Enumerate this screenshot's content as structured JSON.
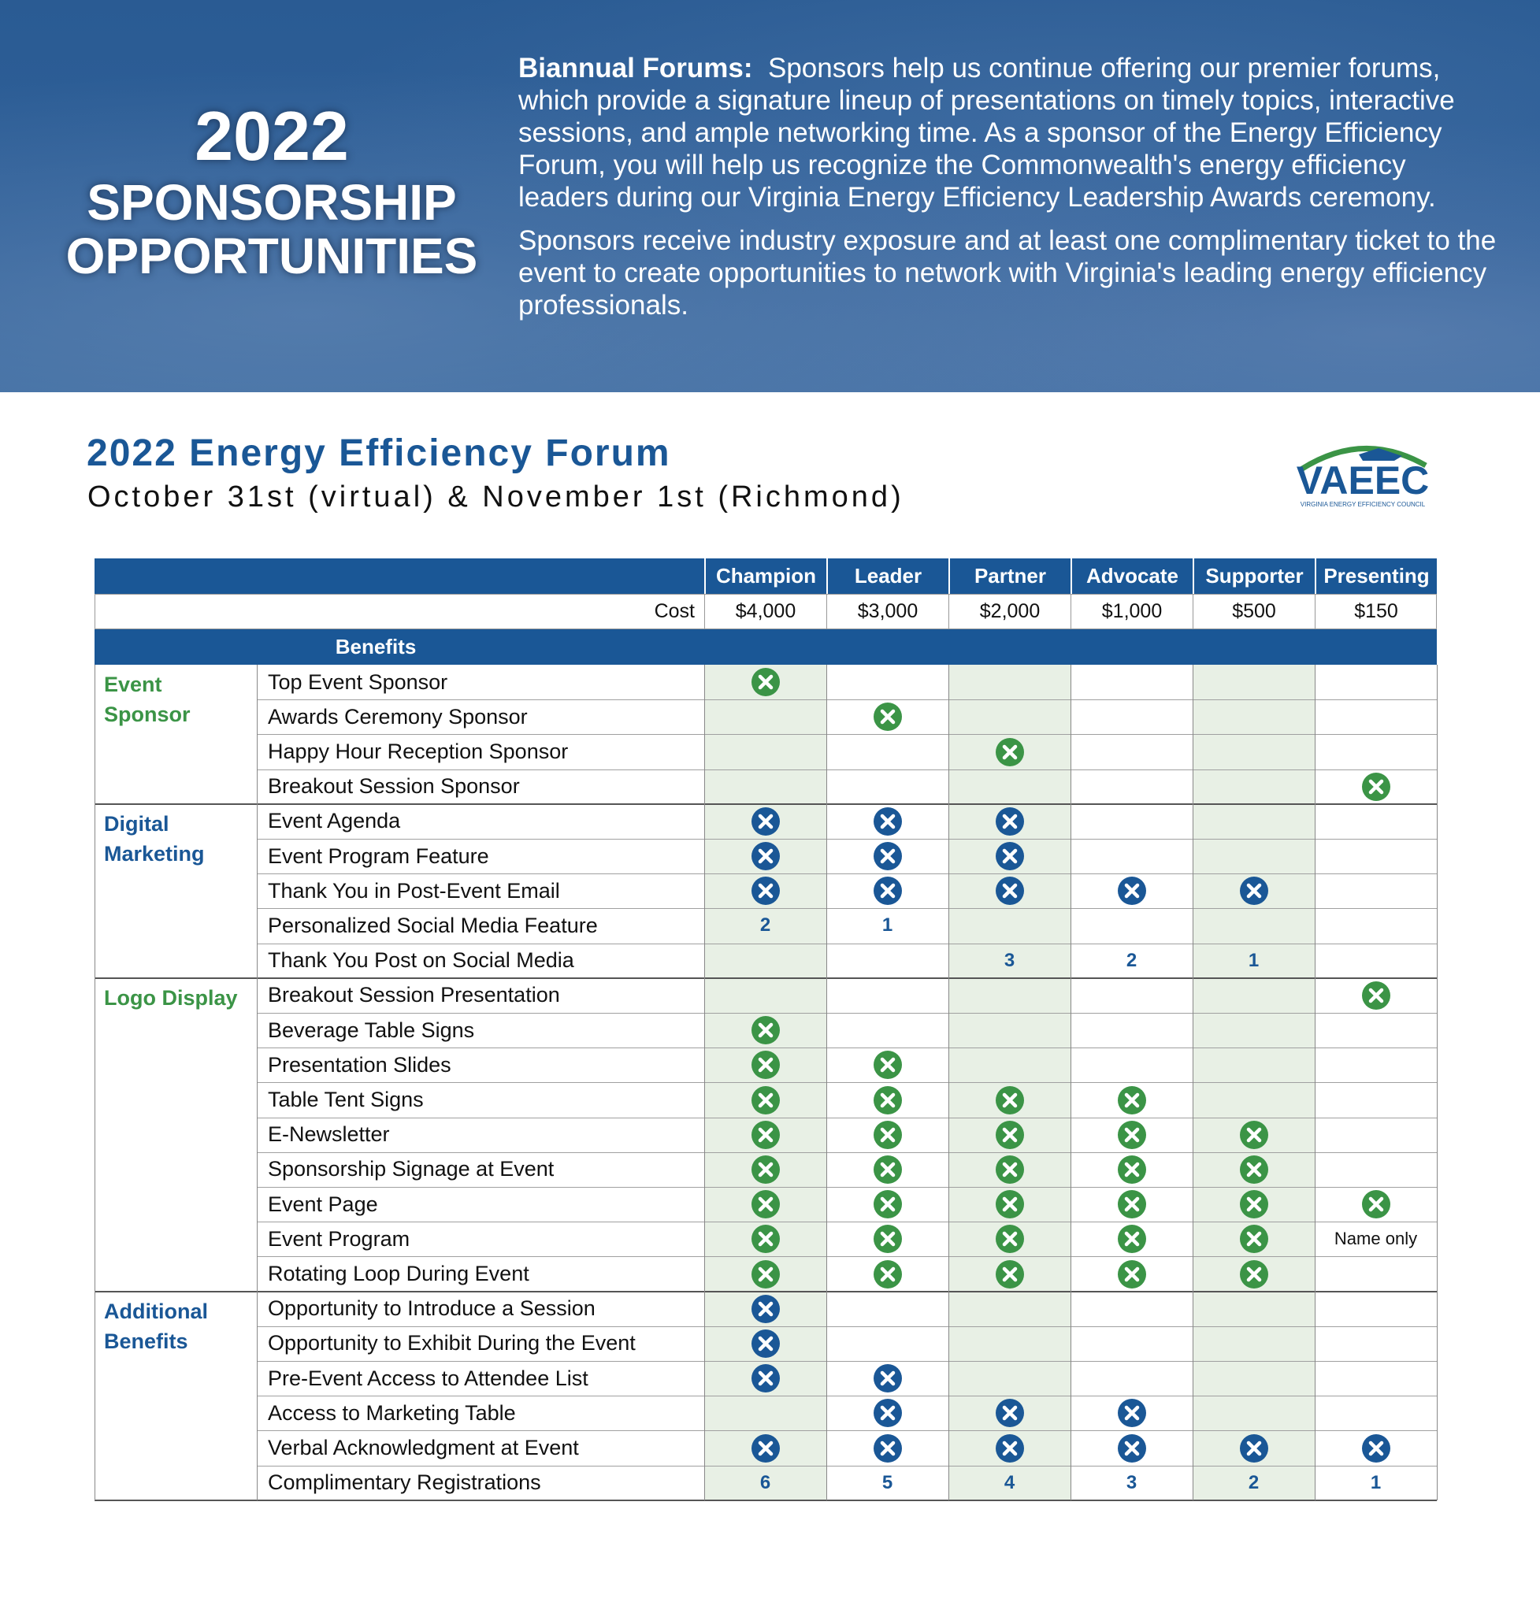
{
  "header": {
    "title_year": "2022",
    "title_line1": "SPONSORSHIP",
    "title_line2": "OPPORTUNITIES",
    "paragraphs": [
      {
        "label": "Biannual Forums:",
        "text": "Sponsors help us continue offering our premier forums, which provide a signature lineup of presentations on timely topics, interactive sessions, and ample networking time. As a sponsor of the Energy Efficiency Forum, you will help us recognize the Commonwealth's energy efficiency leaders during our Virginia Energy Efficiency Leadership Awards ceremony."
      },
      {
        "text": "Sponsors receive industry exposure and at least one complimentary ticket to the event to create opportunities to network with Virginia's leading energy efficiency professionals."
      }
    ]
  },
  "forum": {
    "title": "2022 Energy Efficiency Forum",
    "date": "October 31st (virtual) & November 1st (Richmond)"
  },
  "logo": {
    "name": "VAEEC",
    "tagline": "VIRGINIA ENERGY EFFICIENCY COUNCIL"
  },
  "table": {
    "cost_label": "Cost",
    "benefits_label": "Benefits",
    "columns": [
      {
        "name": "Champion",
        "cost": "$4,000"
      },
      {
        "name": "Leader",
        "cost": "$3,000"
      },
      {
        "name": "Partner",
        "cost": "$2,000"
      },
      {
        "name": "Advocate",
        "cost": "$1,000"
      },
      {
        "name": "Supporter",
        "cost": "$500"
      },
      {
        "name": "Presenting",
        "cost": "$150"
      }
    ],
    "groups": [
      {
        "name": "Event Sponsor",
        "color": "#3b9446",
        "rows": [
          {
            "label": "Top Event Sponsor",
            "cells": [
              true,
              null,
              null,
              null,
              null,
              null
            ]
          },
          {
            "label": "Awards Ceremony Sponsor",
            "cells": [
              null,
              true,
              null,
              null,
              null,
              null
            ]
          },
          {
            "label": "Happy Hour Reception Sponsor",
            "cells": [
              null,
              null,
              true,
              null,
              null,
              null
            ]
          },
          {
            "label": "Breakout Session Sponsor",
            "cells": [
              null,
              null,
              null,
              null,
              null,
              true
            ]
          }
        ]
      },
      {
        "name": "Digital Marketing",
        "color": "#1a5796",
        "rows": [
          {
            "label": "Event Agenda",
            "cells": [
              true,
              true,
              true,
              null,
              null,
              null
            ]
          },
          {
            "label": "Event Program Feature",
            "cells": [
              true,
              true,
              true,
              null,
              null,
              null
            ]
          },
          {
            "label": "Thank You in Post-Event Email",
            "cells": [
              true,
              true,
              true,
              true,
              true,
              null
            ]
          },
          {
            "label": "Personalized Social Media Feature",
            "cells": [
              2,
              1,
              null,
              null,
              null,
              null
            ]
          },
          {
            "label": "Thank You Post on Social Media",
            "cells": [
              null,
              null,
              3,
              2,
              1,
              null
            ]
          }
        ]
      },
      {
        "name": "Logo Display",
        "color": "#3b9446",
        "rows": [
          {
            "label": "Breakout Session Presentation",
            "cells": [
              null,
              null,
              null,
              null,
              null,
              true
            ]
          },
          {
            "label": "Beverage Table Signs",
            "cells": [
              true,
              null,
              null,
              null,
              null,
              null
            ]
          },
          {
            "label": "Presentation Slides",
            "cells": [
              true,
              true,
              null,
              null,
              null,
              null
            ]
          },
          {
            "label": "Table Tent Signs",
            "cells": [
              true,
              true,
              true,
              true,
              null,
              null
            ]
          },
          {
            "label": "E-Newsletter",
            "cells": [
              true,
              true,
              true,
              true,
              true,
              null
            ]
          },
          {
            "label": "Sponsorship Signage at Event",
            "cells": [
              true,
              true,
              true,
              true,
              true,
              null
            ]
          },
          {
            "label": "Event Page",
            "cells": [
              true,
              true,
              true,
              true,
              true,
              true
            ]
          },
          {
            "label": "Event Program",
            "cells": [
              true,
              true,
              true,
              true,
              true,
              "Name only"
            ]
          },
          {
            "label": "Rotating Loop During Event",
            "cells": [
              true,
              true,
              true,
              true,
              true,
              null
            ]
          }
        ]
      },
      {
        "name": "Additional Benefits",
        "color": "#1a5796",
        "rows": [
          {
            "label": "Opportunity to Introduce a Session",
            "cells": [
              true,
              null,
              null,
              null,
              null,
              null
            ]
          },
          {
            "label": "Opportunity to Exhibit During the Event",
            "cells": [
              true,
              null,
              null,
              null,
              null,
              null
            ]
          },
          {
            "label": "Pre-Event Access to Attendee List",
            "cells": [
              true,
              true,
              null,
              null,
              null,
              null
            ]
          },
          {
            "label": "Access to Marketing Table",
            "cells": [
              null,
              true,
              true,
              true,
              null,
              null
            ]
          },
          {
            "label": "Verbal Acknowledgment at Event",
            "cells": [
              true,
              true,
              true,
              true,
              true,
              true
            ]
          },
          {
            "label": "Complimentary Registrations",
            "cells": [
              6,
              5,
              4,
              3,
              2,
              1
            ]
          }
        ]
      }
    ]
  }
}
